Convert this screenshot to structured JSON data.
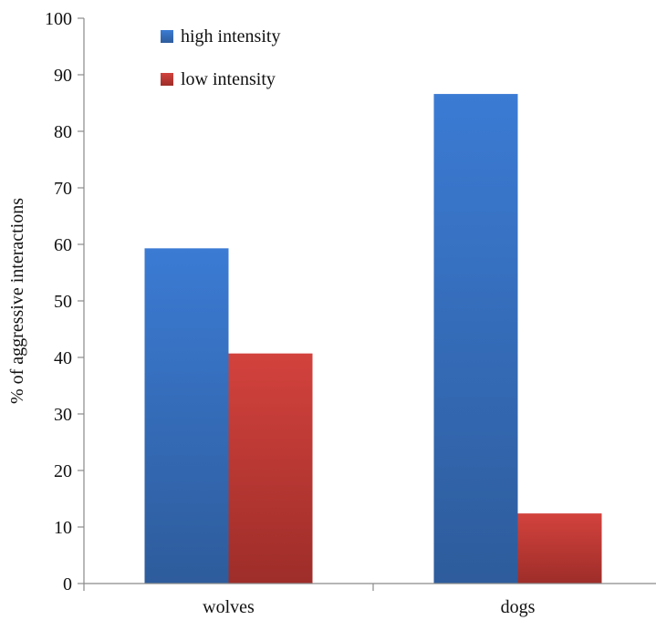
{
  "chart_data": {
    "type": "bar",
    "categories": [
      "wolves",
      "dogs"
    ],
    "series": [
      {
        "name": "high intensity",
        "values": [
          59.3,
          86.6
        ],
        "color": "#3a75c4"
      },
      {
        "name": "low intensity",
        "values": [
          40.7,
          12.4
        ],
        "color": "#c43a36"
      }
    ],
    "title": "",
    "xlabel": "",
    "ylabel": "% of aggressive interactions",
    "ylim": [
      0,
      100
    ],
    "yticks": [
      0,
      10,
      20,
      30,
      40,
      50,
      60,
      70,
      80,
      90,
      100
    ],
    "grid": false,
    "legend_position": "top-left"
  }
}
